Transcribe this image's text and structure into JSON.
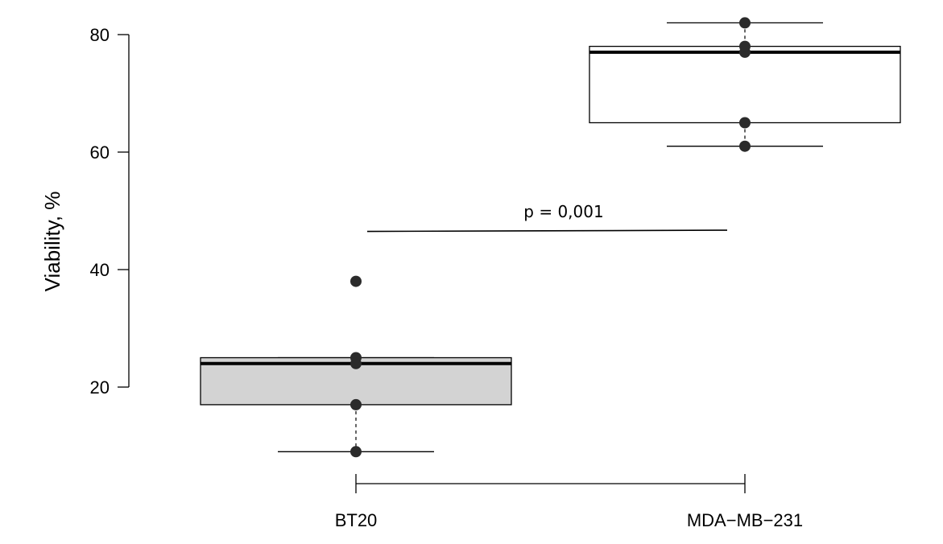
{
  "chart_data": {
    "type": "box",
    "ylabel": "Viability, %",
    "xlabel": "",
    "ylim": [
      5,
      83
    ],
    "y_ticks": [
      20,
      40,
      60,
      80
    ],
    "y_tick_labels": [
      "20",
      "40",
      "60",
      "80"
    ],
    "categories": [
      "BT20",
      "MDA−MB−231"
    ],
    "boxes": [
      {
        "category": "BT20",
        "whisker_low": 9,
        "q1": 17,
        "median": 24,
        "q3": 25,
        "whisker_high": 25,
        "fill": "#d3d3d3",
        "points": [
          9,
          17,
          24,
          25,
          38
        ]
      },
      {
        "category": "MDA−MB−231",
        "whisker_low": 61,
        "q1": 65,
        "median": 77,
        "q3": 78,
        "whisker_high": 82,
        "fill": "#ffffff",
        "points": [
          61,
          65,
          77,
          78,
          82
        ]
      }
    ],
    "significance": {
      "label": "p = 0,001",
      "y": 46.5
    },
    "point_color": "#2b2b2b",
    "grid": false
  }
}
